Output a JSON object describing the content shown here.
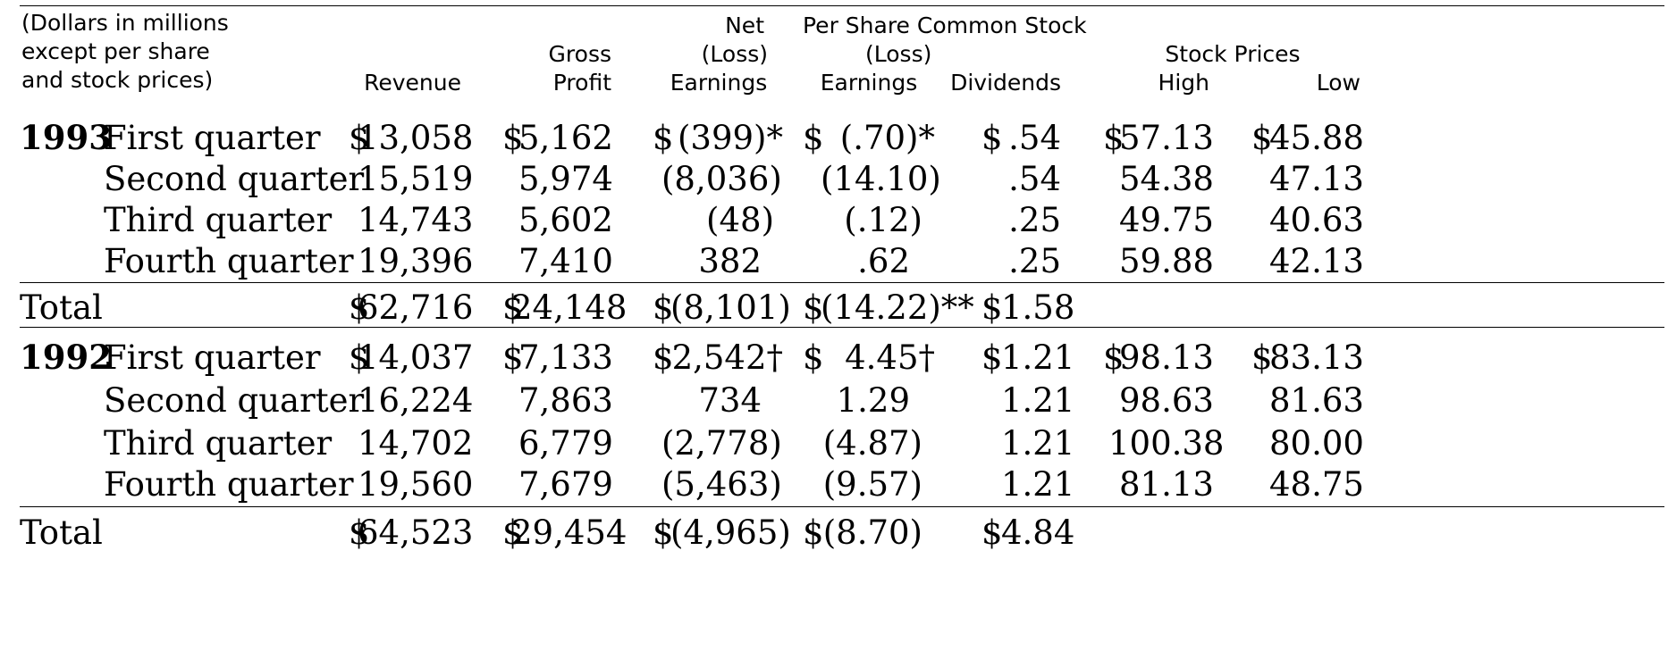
{
  "header": {
    "stub": [
      "(Dollars in millions",
      "except per share",
      "and stock prices)"
    ],
    "revenue": "Revenue",
    "gross": [
      "Gross",
      "Profit"
    ],
    "net": [
      "Net",
      "(Loss)",
      "Earnings"
    ],
    "per_share_group": "Per Share Common Stock",
    "per_share_sub": "(Loss)",
    "earnings": "Earnings",
    "dividends": "Dividends",
    "stock_prices": "Stock Prices",
    "high": "High",
    "low": "Low"
  },
  "currency_symbol": "$",
  "rows": [
    {
      "year": "1993",
      "label": "First quarter",
      "revenue": "13,058",
      "gross": "5,162",
      "net": "(399)*",
      "eps": "(.70)*",
      "div": ".54",
      "high": "57.13",
      "low": "45.88"
    },
    {
      "label": "Second quarter",
      "revenue": "15,519",
      "gross": "5,974",
      "net": "(8,036)",
      "eps": "(14.10)",
      "div": ".54",
      "high": "54.38",
      "low": "47.13"
    },
    {
      "label": "Third quarter",
      "revenue": "14,743",
      "gross": "5,602",
      "net": "(48)",
      "eps": "(.12)",
      "div": ".25",
      "high": "49.75",
      "low": "40.63"
    },
    {
      "label": "Fourth quarter",
      "revenue": "19,396",
      "gross": "7,410",
      "net": "382",
      "eps": ".62",
      "div": ".25",
      "high": "59.88",
      "low": "42.13"
    },
    {
      "label": "Total",
      "revenue": "62,716",
      "gross": "24,148",
      "net": "(8,101)",
      "eps": "(14.22)**",
      "div": "1.58"
    },
    {
      "year": "1992",
      "label": "First quarter",
      "revenue": "14,037",
      "gross": "7,133",
      "net": "2,542†",
      "eps": "4.45†",
      "div": "1.21",
      "high": "98.13",
      "low": "83.13"
    },
    {
      "label": "Second quarter",
      "revenue": "16,224",
      "gross": "7,863",
      "net": "734",
      "eps": "1.29",
      "div": "1.21",
      "high": "98.63",
      "low": "81.63"
    },
    {
      "label": "Third quarter",
      "revenue": "14,702",
      "gross": "6,779",
      "net": "(2,778)",
      "eps": "(4.87)",
      "div": "1.21",
      "high": "100.38",
      "low": "80.00"
    },
    {
      "label": "Fourth quarter",
      "revenue": "19,560",
      "gross": "7,679",
      "net": "(5,463)",
      "eps": "(9.57)",
      "div": "1.21",
      "high": "81.13",
      "low": "48.75"
    },
    {
      "label": "Total",
      "revenue": "64,523",
      "gross": "29,454",
      "net": "(4,965)",
      "eps": "(8.70)",
      "div": "4.84"
    }
  ]
}
